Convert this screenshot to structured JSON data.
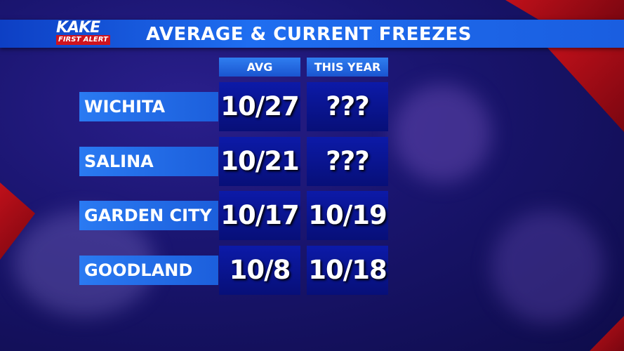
{
  "header": {
    "logo": {
      "brand": "KAKE",
      "tagline": "FIRST ALERT"
    },
    "title": "AVERAGE & CURRENT FREEZES"
  },
  "table": {
    "columns": [
      "AVG",
      "THIS YEAR"
    ],
    "rows": [
      [
        "WICHITA",
        "10/27",
        "???"
      ],
      [
        "SALINA",
        "10/21",
        "???"
      ],
      [
        "GARDEN CITY",
        "10/17",
        "10/19"
      ],
      [
        "GOODLAND",
        "10/8",
        "10/18"
      ]
    ]
  }
}
